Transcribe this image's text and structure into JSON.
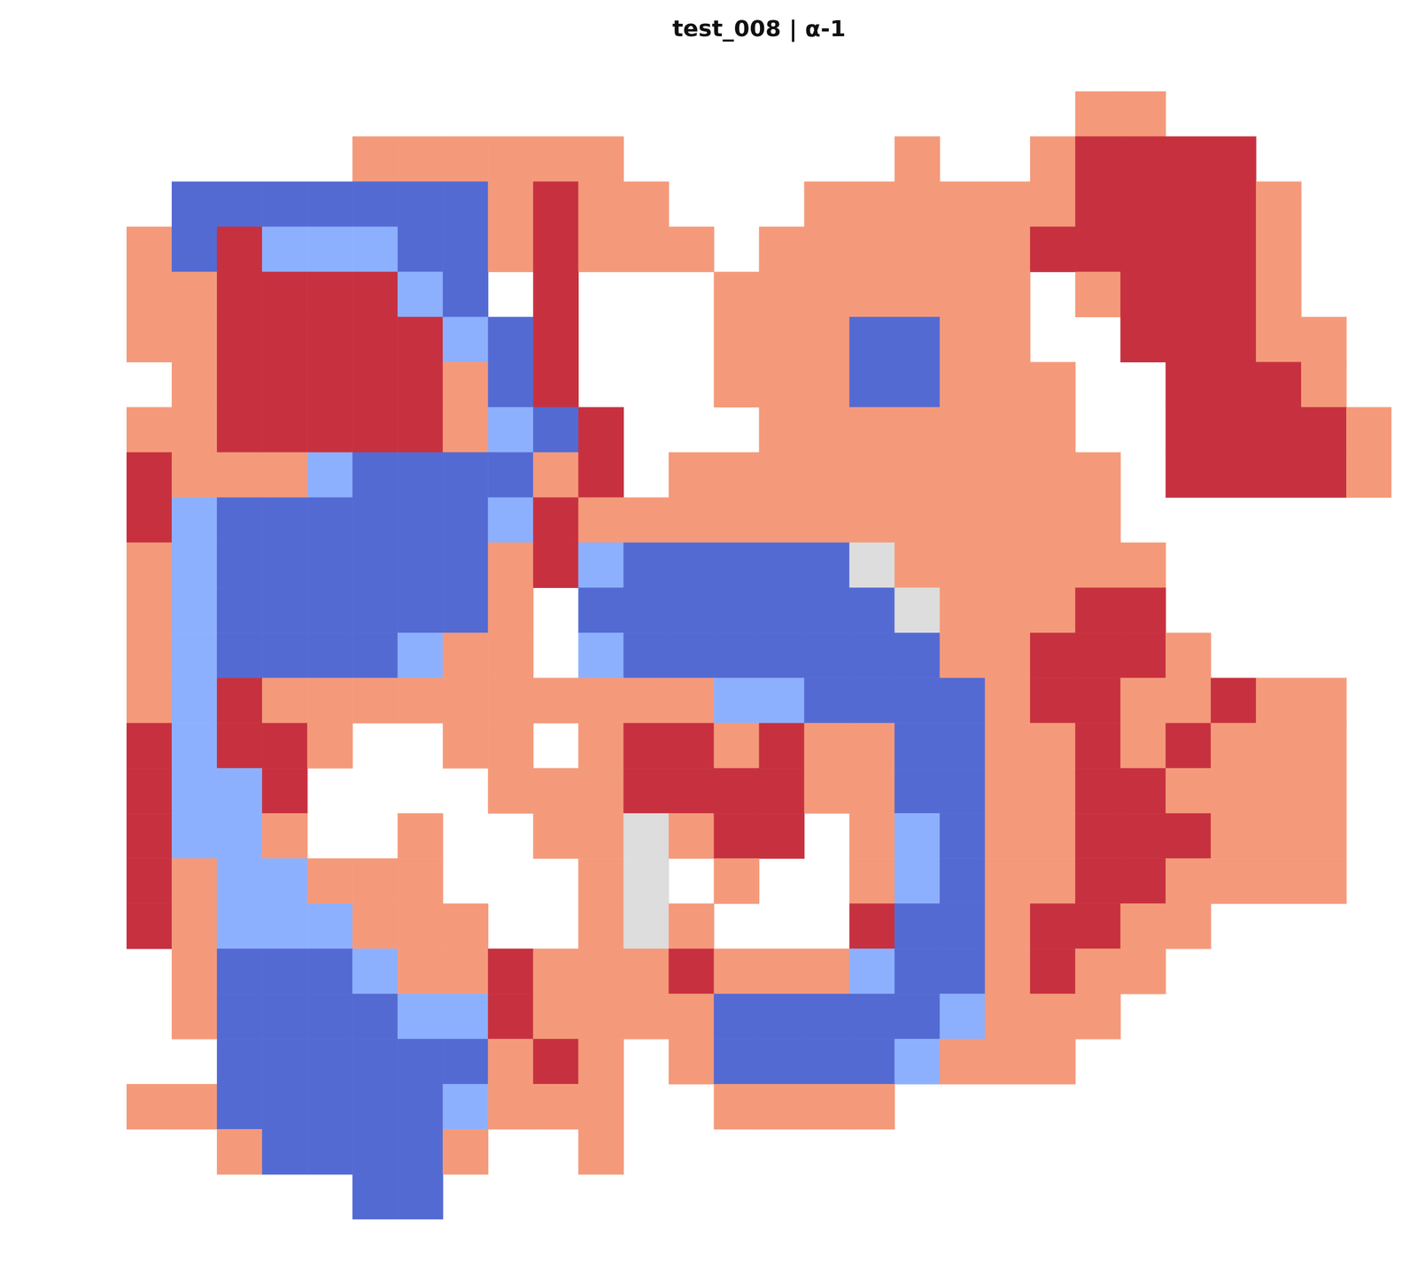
{
  "chart_data": {
    "type": "heatmap",
    "title": "test_008 | α-1",
    "tick_labels": false,
    "grid": false,
    "color_range": [
      -1,
      1
    ],
    "cells": [
      [
        null,
        null,
        null,
        null,
        null,
        null,
        null,
        null,
        null,
        null,
        null,
        null,
        null,
        null,
        null,
        null,
        null,
        null,
        null,
        null,
        null,
        0.5,
        0.5,
        null,
        null,
        null,
        null,
        null
      ],
      [
        null,
        null,
        null,
        null,
        null,
        0.5,
        0.5,
        0.5,
        0.5,
        0.5,
        0.5,
        null,
        null,
        null,
        null,
        null,
        null,
        0.5,
        null,
        null,
        0.5,
        0.85,
        0.85,
        0.85,
        0.85,
        null,
        null,
        null
      ],
      [
        null,
        -0.85,
        -0.85,
        -0.85,
        -0.85,
        -0.85,
        -0.85,
        -0.85,
        0.5,
        0.85,
        0.5,
        0.5,
        null,
        null,
        null,
        0.5,
        0.5,
        0.5,
        0.5,
        0.5,
        0.5,
        0.85,
        0.85,
        0.85,
        0.85,
        0.5,
        null,
        null
      ],
      [
        0.5,
        -0.85,
        0.85,
        -0.5,
        -0.5,
        -0.5,
        -0.85,
        -0.85,
        0.5,
        0.85,
        0.5,
        0.5,
        0.5,
        null,
        0.5,
        0.5,
        0.5,
        0.5,
        0.5,
        0.5,
        0.85,
        0.85,
        0.85,
        0.85,
        0.85,
        0.5,
        null,
        null
      ],
      [
        0.5,
        0.5,
        0.85,
        0.85,
        0.85,
        0.85,
        -0.5,
        -0.85,
        null,
        0.85,
        null,
        null,
        null,
        0.5,
        0.5,
        0.5,
        0.5,
        0.5,
        0.5,
        0.5,
        null,
        0.5,
        0.85,
        0.85,
        0.85,
        0.5,
        null,
        null
      ],
      [
        0.5,
        0.5,
        0.85,
        0.85,
        0.85,
        0.85,
        0.85,
        -0.5,
        -0.85,
        0.85,
        null,
        null,
        null,
        0.5,
        0.5,
        0.5,
        -0.85,
        -0.85,
        0.5,
        0.5,
        null,
        null,
        0.85,
        0.85,
        0.85,
        0.5,
        0.5,
        null
      ],
      [
        null,
        0.5,
        0.85,
        0.85,
        0.85,
        0.85,
        0.85,
        0.5,
        -0.85,
        0.85,
        null,
        null,
        null,
        0.5,
        0.5,
        0.5,
        -0.85,
        -0.85,
        0.5,
        0.5,
        0.5,
        null,
        null,
        0.85,
        0.85,
        0.85,
        0.5,
        null
      ],
      [
        0.5,
        0.5,
        0.85,
        0.85,
        0.85,
        0.85,
        0.85,
        0.5,
        -0.5,
        -0.85,
        0.85,
        null,
        null,
        null,
        0.5,
        0.5,
        0.5,
        0.5,
        0.5,
        0.5,
        0.5,
        null,
        null,
        0.85,
        0.85,
        0.85,
        0.85,
        0.5
      ],
      [
        0.85,
        0.5,
        0.5,
        0.5,
        -0.5,
        -0.85,
        -0.85,
        -0.85,
        -0.85,
        0.5,
        0.85,
        null,
        0.5,
        0.5,
        0.5,
        0.5,
        0.5,
        0.5,
        0.5,
        0.5,
        0.5,
        0.5,
        null,
        0.85,
        0.85,
        0.85,
        0.85,
        0.5
      ],
      [
        0.85,
        -0.5,
        -0.85,
        -0.85,
        -0.85,
        -0.85,
        -0.85,
        -0.85,
        -0.5,
        0.85,
        0.5,
        0.5,
        0.5,
        0.5,
        0.5,
        0.5,
        0.5,
        0.5,
        0.5,
        0.5,
        0.5,
        0.5,
        null,
        null,
        null,
        null,
        null,
        null
      ],
      [
        0.5,
        -0.5,
        -0.85,
        -0.85,
        -0.85,
        -0.85,
        -0.85,
        -0.85,
        0.5,
        0.85,
        -0.5,
        -0.85,
        -0.85,
        -0.85,
        -0.85,
        -0.85,
        0,
        0.5,
        0.5,
        0.5,
        0.5,
        0.5,
        0.5,
        null,
        null,
        null,
        null,
        null
      ],
      [
        0.5,
        -0.5,
        -0.85,
        -0.85,
        -0.85,
        -0.85,
        -0.85,
        -0.85,
        0.5,
        null,
        -0.85,
        -0.85,
        -0.85,
        -0.85,
        -0.85,
        -0.85,
        -0.85,
        0,
        0.5,
        0.5,
        0.5,
        0.85,
        0.85,
        null,
        null,
        null,
        null,
        null
      ],
      [
        0.5,
        -0.5,
        -0.85,
        -0.85,
        -0.85,
        -0.85,
        -0.5,
        0.5,
        0.5,
        null,
        -0.5,
        -0.85,
        -0.85,
        -0.85,
        -0.85,
        -0.85,
        -0.85,
        -0.85,
        0.5,
        0.5,
        0.85,
        0.85,
        0.85,
        0.5,
        null,
        null,
        null,
        null
      ],
      [
        0.5,
        -0.5,
        0.85,
        0.5,
        0.5,
        0.5,
        0.5,
        0.5,
        0.5,
        0.5,
        0.5,
        0.5,
        0.5,
        -0.5,
        -0.5,
        -0.85,
        -0.85,
        -0.85,
        -0.85,
        0.5,
        0.85,
        0.85,
        0.5,
        0.5,
        0.85,
        0.5,
        0.5,
        null
      ],
      [
        0.85,
        -0.5,
        0.85,
        0.85,
        0.5,
        null,
        null,
        0.5,
        0.5,
        null,
        0.5,
        0.85,
        0.85,
        0.5,
        0.85,
        0.5,
        0.5,
        -0.85,
        -0.85,
        0.5,
        0.5,
        0.85,
        0.5,
        0.85,
        0.5,
        0.5,
        0.5,
        null
      ],
      [
        0.85,
        -0.5,
        -0.5,
        0.85,
        null,
        null,
        null,
        null,
        0.5,
        0.5,
        0.5,
        0.85,
        0.85,
        0.85,
        0.85,
        0.5,
        0.5,
        -0.85,
        -0.85,
        0.5,
        0.5,
        0.85,
        0.85,
        0.5,
        0.5,
        0.5,
        0.5,
        null
      ],
      [
        0.85,
        -0.5,
        -0.5,
        0.5,
        null,
        null,
        0.5,
        null,
        null,
        0.5,
        0.5,
        0,
        0.5,
        0.85,
        0.85,
        null,
        0.5,
        -0.5,
        -0.85,
        0.5,
        0.5,
        0.85,
        0.85,
        0.85,
        0.5,
        0.5,
        0.5,
        null
      ],
      [
        0.85,
        0.5,
        -0.5,
        -0.5,
        0.5,
        0.5,
        0.5,
        null,
        null,
        null,
        0.5,
        0,
        null,
        0.5,
        null,
        null,
        0.5,
        -0.5,
        -0.85,
        0.5,
        0.5,
        0.85,
        0.85,
        0.5,
        0.5,
        0.5,
        0.5,
        null
      ],
      [
        0.85,
        0.5,
        -0.5,
        -0.5,
        -0.5,
        0.5,
        0.5,
        0.5,
        null,
        null,
        0.5,
        0,
        0.5,
        null,
        null,
        null,
        0.85,
        -0.85,
        -0.85,
        0.5,
        0.85,
        0.85,
        0.5,
        0.5,
        null,
        null,
        null,
        null
      ],
      [
        null,
        0.5,
        -0.85,
        -0.85,
        -0.85,
        -0.5,
        0.5,
        0.5,
        0.85,
        0.5,
        0.5,
        0.5,
        0.85,
        0.5,
        0.5,
        0.5,
        -0.5,
        -0.85,
        -0.85,
        0.5,
        0.85,
        0.5,
        0.5,
        null,
        null,
        null,
        null,
        null
      ],
      [
        null,
        0.5,
        -0.85,
        -0.85,
        -0.85,
        -0.85,
        -0.5,
        -0.5,
        0.85,
        0.5,
        0.5,
        0.5,
        0.5,
        -0.85,
        -0.85,
        -0.85,
        -0.85,
        -0.85,
        -0.5,
        0.5,
        0.5,
        0.5,
        null,
        null,
        null,
        null,
        null,
        null
      ],
      [
        null,
        null,
        -0.85,
        -0.85,
        -0.85,
        -0.85,
        -0.85,
        -0.85,
        0.5,
        0.85,
        0.5,
        null,
        0.5,
        -0.85,
        -0.85,
        -0.85,
        -0.85,
        -0.5,
        0.5,
        0.5,
        0.5,
        null,
        null,
        null,
        null,
        null,
        null,
        null
      ],
      [
        0.5,
        0.5,
        -0.85,
        -0.85,
        -0.85,
        -0.85,
        -0.85,
        -0.5,
        0.5,
        0.5,
        0.5,
        null,
        null,
        0.5,
        0.5,
        0.5,
        0.5,
        null,
        null,
        null,
        null,
        null,
        null,
        null,
        null,
        null,
        null,
        null
      ],
      [
        null,
        null,
        0.5,
        -0.85,
        -0.85,
        -0.85,
        -0.85,
        0.5,
        null,
        null,
        0.5,
        null,
        null,
        null,
        null,
        null,
        null,
        null,
        null,
        null,
        null,
        null,
        null,
        null,
        null,
        null,
        null,
        null
      ],
      [
        null,
        null,
        null,
        null,
        null,
        -0.85,
        -0.85,
        null,
        null,
        null,
        null,
        null,
        null,
        null,
        null,
        null,
        null,
        null,
        null,
        null,
        null,
        null,
        null,
        null,
        null,
        null,
        null,
        null
      ]
    ]
  }
}
